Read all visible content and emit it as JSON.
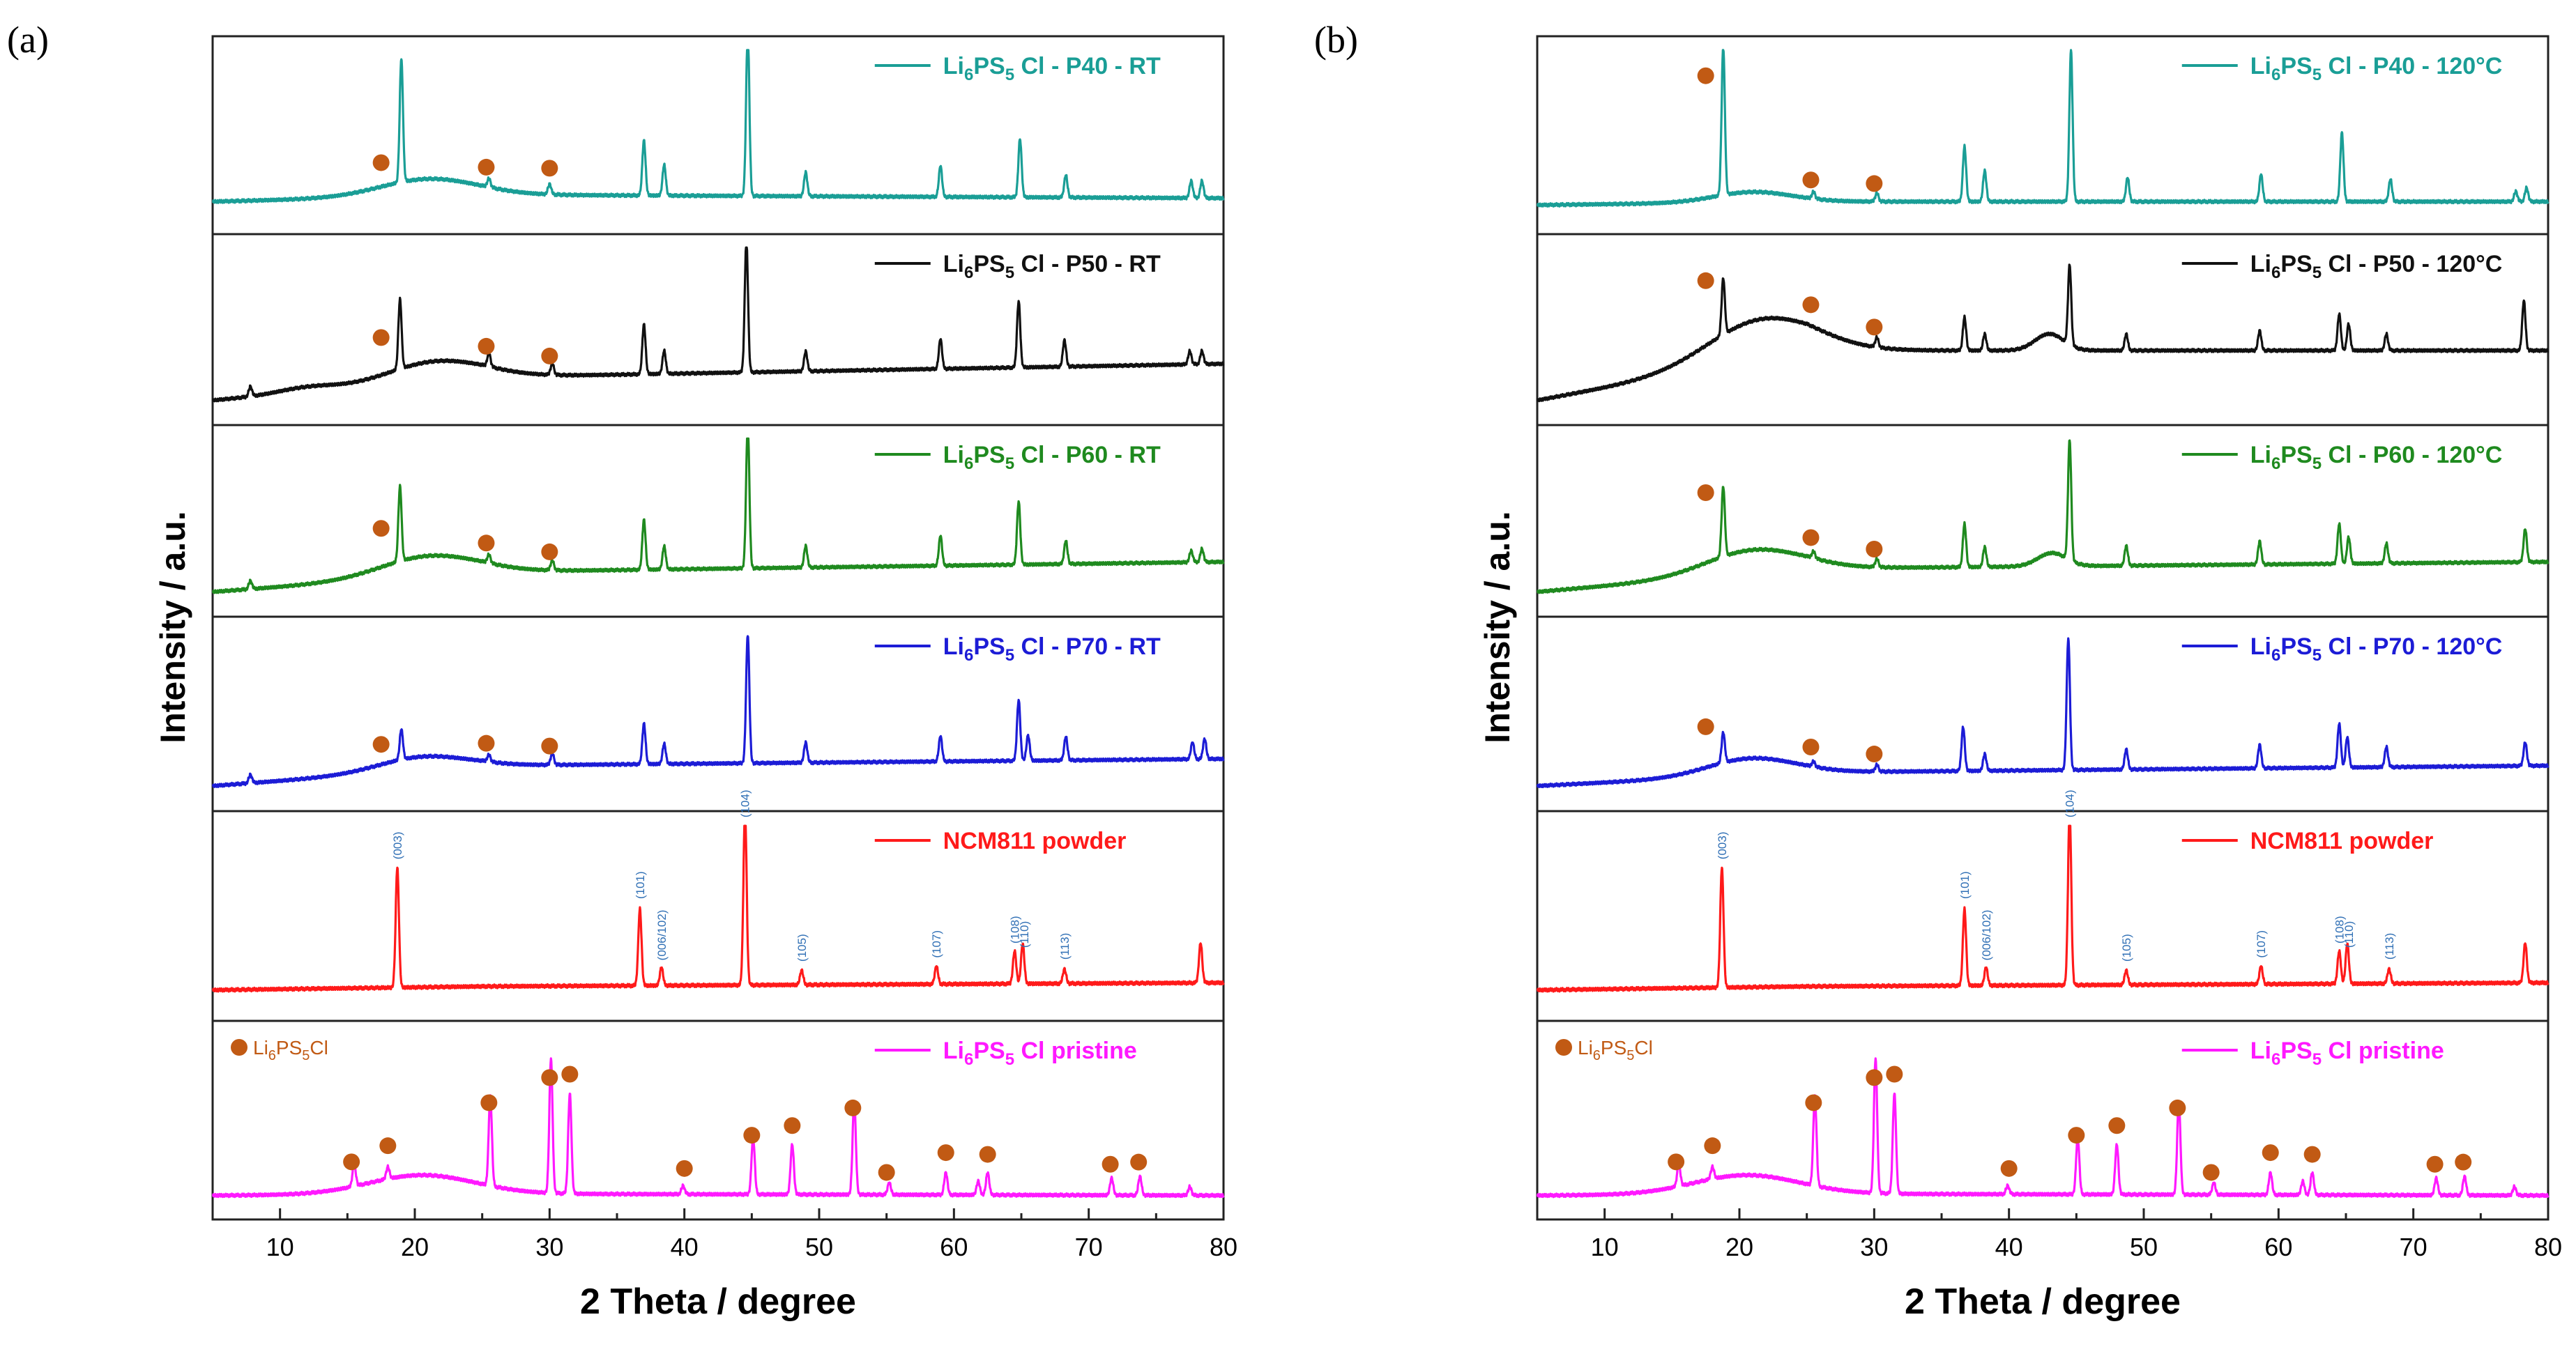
{
  "figure": {
    "panel_labels": [
      "(a)",
      "(b)"
    ],
    "ylabel": "Intensity / a.u.",
    "xlabel": "2 Theta / degree",
    "xticks": [
      10,
      20,
      30,
      40,
      50,
      60,
      70,
      80
    ],
    "colors": {
      "P40": "#1a9e96",
      "P50": "#111111",
      "P60": "#1f8a1f",
      "P70": "#1c1cd6",
      "NCM811": "#ff1a1a",
      "pristine": "#ff19ff",
      "marker": "#c15a14",
      "hkl": "#2f6fb5",
      "axis": "#222222"
    }
  },
  "chart_data": [
    {
      "type": "line",
      "panel": "(a)",
      "xlabel": "2 Theta / degree",
      "ylabel": "Intensity / a.u.",
      "xlim": [
        5,
        80
      ],
      "xticks": [
        10,
        20,
        30,
        40,
        50,
        60,
        70,
        80
      ],
      "series": [
        {
          "key": "P40",
          "label_pre": "Li",
          "sub1": "6",
          "label_mid": "PS",
          "sub2": "5",
          "label_post": "Cl - P40 - RT",
          "peaks": [
            [
              19.0,
              0.72
            ],
            [
              25.5,
              0.05
            ],
            [
              30.0,
              0.06
            ],
            [
              37.0,
              0.32
            ],
            [
              38.5,
              0.18
            ],
            [
              44.7,
              0.96
            ],
            [
              49.0,
              0.14
            ],
            [
              59.0,
              0.18
            ],
            [
              64.9,
              0.34
            ],
            [
              68.3,
              0.13
            ],
            [
              77.6,
              0.1
            ],
            [
              78.4,
              0.1
            ]
          ],
          "humps": [
            [
              21.0,
              0.1,
              5.0
            ]
          ],
          "base": [
            0.12,
            0.16,
            0.14
          ],
          "markers": [
            17.5,
            25.3,
            30.0
          ]
        },
        {
          "key": "P50",
          "label_pre": "Li",
          "sub1": "6",
          "label_mid": "PS",
          "sub2": "5",
          "label_post": "Cl - P50 - RT",
          "peaks": [
            [
              7.8,
              0.06
            ],
            [
              18.9,
              0.42
            ],
            [
              25.5,
              0.08
            ],
            [
              30.2,
              0.07
            ],
            [
              37.0,
              0.3
            ],
            [
              38.5,
              0.14
            ],
            [
              44.6,
              0.8
            ],
            [
              49.0,
              0.12
            ],
            [
              59.0,
              0.18
            ],
            [
              64.8,
              0.4
            ],
            [
              68.2,
              0.16
            ],
            [
              77.5,
              0.08
            ],
            [
              78.4,
              0.08
            ]
          ],
          "humps": [
            [
              21.5,
              0.12,
              5.0
            ],
            [
              12.0,
              0.03,
              3.0
            ]
          ],
          "base": [
            0.08,
            0.22,
            0.3
          ],
          "markers": [
            17.5,
            25.3,
            30.0
          ]
        },
        {
          "key": "P60",
          "label_pre": "Li",
          "sub1": "6",
          "label_mid": "PS",
          "sub2": "5",
          "label_post": "Cl - P60 - RT",
          "peaks": [
            [
              7.8,
              0.05
            ],
            [
              18.9,
              0.45
            ],
            [
              25.5,
              0.05
            ],
            [
              30.2,
              0.06
            ],
            [
              37.0,
              0.3
            ],
            [
              38.5,
              0.14
            ],
            [
              44.7,
              0.86
            ],
            [
              49.0,
              0.13
            ],
            [
              59.0,
              0.18
            ],
            [
              64.8,
              0.38
            ],
            [
              68.3,
              0.14
            ],
            [
              77.6,
              0.07
            ],
            [
              78.4,
              0.08
            ]
          ],
          "humps": [
            [
              21.0,
              0.12,
              5.0
            ]
          ],
          "base": [
            0.08,
            0.2,
            0.26
          ],
          "markers": [
            17.5,
            25.3,
            30.0
          ]
        },
        {
          "key": "P70",
          "label_pre": "Li",
          "sub1": "6",
          "label_mid": "PS",
          "sub2": "5",
          "label_post": "Cl - P70 - RT",
          "peaks": [
            [
              7.8,
              0.05
            ],
            [
              19.0,
              0.18
            ],
            [
              25.5,
              0.04
            ],
            [
              30.2,
              0.07
            ],
            [
              37.0,
              0.24
            ],
            [
              38.5,
              0.12
            ],
            [
              44.7,
              0.76
            ],
            [
              49.0,
              0.12
            ],
            [
              59.0,
              0.15
            ],
            [
              64.8,
              0.36
            ],
            [
              65.5,
              0.15
            ],
            [
              68.3,
              0.14
            ],
            [
              77.7,
              0.1
            ],
            [
              78.6,
              0.12
            ]
          ],
          "humps": [
            [
              20.5,
              0.08,
              4.5
            ]
          ],
          "base": [
            0.08,
            0.2,
            0.24
          ],
          "markers": [
            17.5,
            25.3,
            30.0
          ]
        },
        {
          "key": "NCM811",
          "label_pre": "NCM811 powder",
          "sub1": "",
          "label_mid": "",
          "sub2": "",
          "label_post": "",
          "peaks": [
            [
              18.7,
              0.66
            ],
            [
              36.7,
              0.42
            ],
            [
              38.3,
              0.1
            ],
            [
              44.5,
              0.96
            ],
            [
              48.7,
              0.08
            ],
            [
              58.7,
              0.1
            ],
            [
              64.5,
              0.18
            ],
            [
              65.1,
              0.22
            ],
            [
              68.2,
              0.08
            ],
            [
              78.3,
              0.22
            ]
          ],
          "humps": [],
          "base": [
            0.1,
            0.12,
            0.14
          ],
          "markers": []
        },
        {
          "key": "pristine",
          "label_pre": "Li",
          "sub1": "6",
          "label_mid": "PS",
          "sub2": "5",
          "label_post": "Cl pristine",
          "peaks": [
            [
              15.5,
              0.13
            ],
            [
              18.0,
              0.07
            ],
            [
              25.6,
              0.52
            ],
            [
              30.1,
              0.78
            ],
            [
              31.5,
              0.58
            ],
            [
              39.9,
              0.05
            ],
            [
              45.1,
              0.33
            ],
            [
              48.0,
              0.29
            ],
            [
              52.6,
              0.54
            ],
            [
              55.2,
              0.07
            ],
            [
              59.4,
              0.13
            ],
            [
              61.8,
              0.08
            ],
            [
              62.5,
              0.13
            ],
            [
              71.7,
              0.1
            ],
            [
              73.8,
              0.11
            ],
            [
              77.5,
              0.05
            ]
          ],
          "humps": [
            [
              20.5,
              0.11,
              5.5
            ]
          ],
          "base": [
            0.07,
            0.08,
            0.07
          ],
          "markers": [
            15.3,
            18.0,
            25.5,
            30.0,
            31.5,
            40.0,
            45.0,
            48.0,
            52.5,
            55.0,
            59.4,
            62.5,
            71.6,
            73.7
          ]
        }
      ],
      "hkl": [
        [
          18.7,
          "(003)"
        ],
        [
          36.7,
          "(101)"
        ],
        [
          38.3,
          "(006/102)"
        ],
        [
          44.5,
          "(104)"
        ],
        [
          48.7,
          "(105)"
        ],
        [
          58.7,
          "(107)"
        ],
        [
          64.5,
          "(108)"
        ],
        [
          65.2,
          "(110)"
        ],
        [
          68.2,
          "(113)"
        ]
      ],
      "legend_marker_label": {
        "pre": "Li",
        "sub1": "6",
        "mid": "PS",
        "sub2": "5",
        "post": "Cl"
      }
    },
    {
      "type": "line",
      "panel": "(b)",
      "xlabel": "2 Theta / degree",
      "ylabel": "Intensity / a.u.",
      "xlim": [
        5,
        80
      ],
      "xticks": [
        10,
        20,
        30,
        40,
        50,
        60,
        70,
        80
      ],
      "series": [
        {
          "key": "P40",
          "label_pre": "Li",
          "sub1": "6",
          "label_mid": "PS",
          "sub2": "5",
          "label_post": "Cl - P40 - 120°C",
          "peaks": [
            [
              18.8,
              0.86
            ],
            [
              25.5,
              0.04
            ],
            [
              30.2,
              0.05
            ],
            [
              36.7,
              0.32
            ],
            [
              38.2,
              0.18
            ],
            [
              44.6,
              0.88
            ],
            [
              48.8,
              0.14
            ],
            [
              58.7,
              0.16
            ],
            [
              64.7,
              0.4
            ],
            [
              68.3,
              0.13
            ],
            [
              77.6,
              0.06
            ],
            [
              78.4,
              0.08
            ]
          ],
          "humps": [
            [
              21.0,
              0.06,
              4.0
            ]
          ],
          "base": [
            0.1,
            0.12,
            0.12
          ],
          "markers": [
            17.5,
            25.3,
            30.0
          ]
        },
        {
          "key": "P50",
          "label_pre": "Li",
          "sub1": "6",
          "label_mid": "PS",
          "sub2": "5",
          "label_post": "Cl - P50 - 120°C",
          "peaks": [
            [
              18.8,
              0.34
            ],
            [
              30.2,
              0.06
            ],
            [
              36.7,
              0.2
            ],
            [
              38.2,
              0.1
            ],
            [
              44.5,
              0.48
            ],
            [
              48.7,
              0.1
            ],
            [
              58.6,
              0.12
            ],
            [
              64.5,
              0.22
            ],
            [
              65.2,
              0.16
            ],
            [
              68.0,
              0.1
            ],
            [
              78.2,
              0.3
            ]
          ],
          "humps": [
            [
              21.5,
              0.24,
              5.5
            ],
            [
              43.0,
              0.1,
              1.5
            ]
          ],
          "base": [
            0.08,
            0.38,
            0.38
          ],
          "markers": [
            17.5,
            25.3,
            30.0
          ]
        },
        {
          "key": "P60",
          "label_pre": "Li",
          "sub1": "6",
          "label_mid": "PS",
          "sub2": "5",
          "label_post": "Cl - P60 - 120°C",
          "peaks": [
            [
              18.8,
              0.42
            ],
            [
              25.5,
              0.04
            ],
            [
              30.2,
              0.05
            ],
            [
              36.7,
              0.26
            ],
            [
              38.2,
              0.12
            ],
            [
              44.5,
              0.72
            ],
            [
              48.7,
              0.12
            ],
            [
              58.6,
              0.14
            ],
            [
              64.5,
              0.24
            ],
            [
              65.2,
              0.16
            ],
            [
              68.0,
              0.12
            ],
            [
              78.3,
              0.2
            ]
          ],
          "humps": [
            [
              21.0,
              0.14,
              5.0
            ],
            [
              43.2,
              0.08,
              1.5
            ]
          ],
          "base": [
            0.08,
            0.22,
            0.26
          ],
          "markers": [
            17.5,
            25.3,
            30.0
          ]
        },
        {
          "key": "P70",
          "label_pre": "Li",
          "sub1": "6",
          "label_mid": "PS",
          "sub2": "5",
          "label_post": "Cl - P70 - 120°C",
          "peaks": [
            [
              18.8,
              0.18
            ],
            [
              25.5,
              0.03
            ],
            [
              30.2,
              0.04
            ],
            [
              36.6,
              0.26
            ],
            [
              38.2,
              0.1
            ],
            [
              44.4,
              0.78
            ],
            [
              48.7,
              0.12
            ],
            [
              58.6,
              0.14
            ],
            [
              64.5,
              0.26
            ],
            [
              65.1,
              0.18
            ],
            [
              68.0,
              0.12
            ],
            [
              78.3,
              0.14
            ]
          ],
          "humps": [
            [
              20.8,
              0.1,
              4.5
            ]
          ],
          "base": [
            0.08,
            0.16,
            0.2
          ],
          "markers": [
            17.5,
            25.3,
            30.0
          ]
        },
        {
          "key": "NCM811",
          "label_pre": "NCM811 powder",
          "sub1": "",
          "label_mid": "",
          "sub2": "",
          "label_post": "",
          "peaks": [
            [
              18.7,
              0.66
            ],
            [
              36.7,
              0.42
            ],
            [
              38.3,
              0.1
            ],
            [
              44.5,
              0.96
            ],
            [
              48.7,
              0.08
            ],
            [
              58.7,
              0.1
            ],
            [
              64.5,
              0.18
            ],
            [
              65.1,
              0.22
            ],
            [
              68.2,
              0.08
            ],
            [
              78.3,
              0.22
            ]
          ],
          "humps": [],
          "base": [
            0.1,
            0.12,
            0.14
          ],
          "markers": []
        },
        {
          "key": "pristine",
          "label_pre": "Li",
          "sub1": "6",
          "label_mid": "PS",
          "sub2": "5",
          "label_post": "Cl pristine",
          "peaks": [
            [
              15.5,
              0.13
            ],
            [
              18.0,
              0.07
            ],
            [
              25.6,
              0.52
            ],
            [
              30.1,
              0.78
            ],
            [
              31.5,
              0.58
            ],
            [
              39.9,
              0.05
            ],
            [
              45.1,
              0.33
            ],
            [
              48.0,
              0.29
            ],
            [
              52.6,
              0.54
            ],
            [
              55.2,
              0.07
            ],
            [
              59.4,
              0.13
            ],
            [
              61.8,
              0.08
            ],
            [
              62.5,
              0.13
            ],
            [
              71.7,
              0.1
            ],
            [
              73.8,
              0.11
            ],
            [
              77.5,
              0.05
            ]
          ],
          "humps": [
            [
              20.5,
              0.11,
              5.5
            ]
          ],
          "base": [
            0.07,
            0.08,
            0.07
          ],
          "markers": [
            15.3,
            18.0,
            25.5,
            30.0,
            31.5,
            40.0,
            45.0,
            48.0,
            52.5,
            55.0,
            59.4,
            62.5,
            71.6,
            73.7
          ]
        }
      ],
      "hkl": [
        [
          18.7,
          "(003)"
        ],
        [
          36.7,
          "(101)"
        ],
        [
          38.3,
          "(006/102)"
        ],
        [
          44.5,
          "(104)"
        ],
        [
          48.7,
          "(105)"
        ],
        [
          58.7,
          "(107)"
        ],
        [
          64.5,
          "(108)"
        ],
        [
          65.2,
          "(110)"
        ],
        [
          68.2,
          "(113)"
        ]
      ],
      "legend_marker_label": {
        "pre": "Li",
        "sub1": "6",
        "mid": "PS",
        "sub2": "5",
        "post": "Cl"
      }
    }
  ]
}
